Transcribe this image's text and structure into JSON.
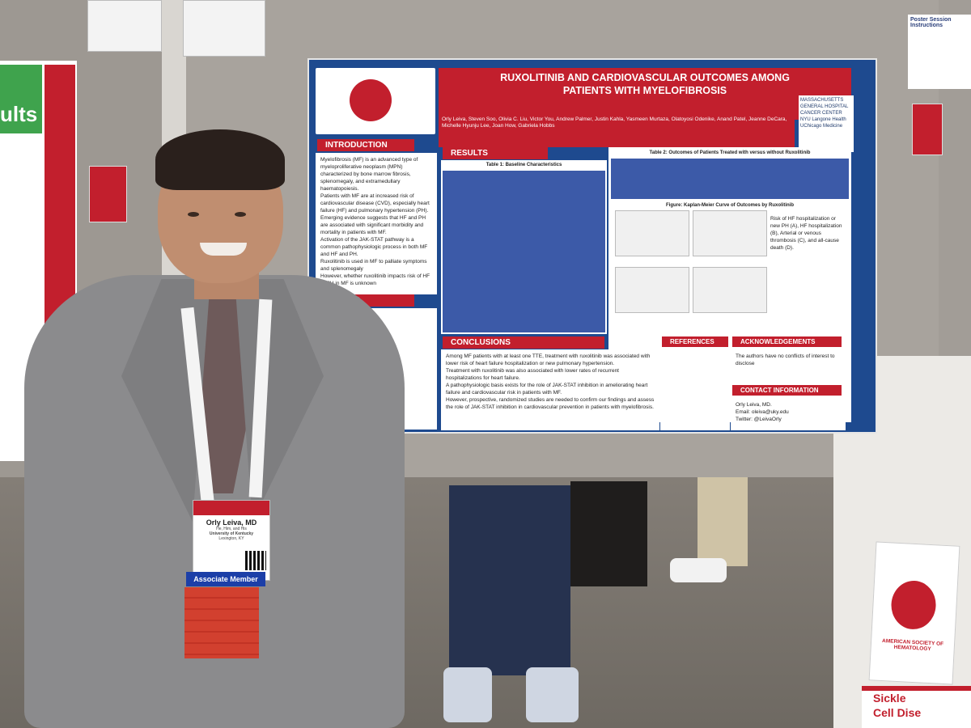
{
  "poster": {
    "title_line1": "RUXOLITINIB AND CARDIOVASCULAR OUTCOMES AMONG",
    "title_line2": "PATIENTS WITH MYELOFIBROSIS",
    "authors": "Orly Leiva, Steven Soo, Olivia C. Liu, Victor You, Andrew Palmer, Justin Kahla, Yasmeen Murtaza, Olatoyosi Odenike, Anand Patel, Jeanne DeCara, Michelle Hyunju Lee, Joan How, Gabriela Hobbs",
    "sections": {
      "introduction": "INTRODUCTION",
      "method": "METHOD",
      "results": "RESULTS",
      "conclusions": "CONCLUSIONS",
      "references": "REFERENCES",
      "acknowledgements": "ACKNOWLEDGEMENTS",
      "contact": "CONTACT INFORMATION"
    },
    "intro_bullets": [
      "Myelofibrosis (MF) is an advanced type of myeloproliferative neoplasm (MPN) characterized by bone marrow fibrosis, splenomegaly, and extramedullary haematopoiesis.",
      "Patients with MF are at increased risk of cardiovascular disease (CVD), especially heart failure (HF) and pulmonary hypertension (PH).",
      "Emerging evidence suggests that HF and PH are associated with significant morbidity and mortality in patients with MF.",
      "Activation of the JAK-STAT pathway is a common pathophysiologic process in both MF and HF and PH.",
      "Ruxolitinib is used in MF to palliate symptoms and splenomegaly",
      "However, whether ruxolitinib impacts risk of HF or PH in MF is unknown"
    ],
    "table1_title": "Table 1: Baseline Characteristics",
    "table2_title": "Table 2: Outcomes of Patients Treated with versus without Ruxolitinib",
    "km_title": "Figure: Kaplan-Meier Curve of Outcomes by Ruxolitinib",
    "km_caption": "Risk of HF hospitalization or new PH (A), HF hospitalization (B), Arterial or venous thrombosis (C), and all-cause death (D).",
    "conclusion_bullets": [
      "Among MF patients with at least one TTE, treatment with ruxolitinib was associated with lower risk of heart failure hospitalization or new pulmonary hypertension.",
      "Treatment with ruxolitinib was also associated with lower rates of recurrent hospitalizations for heart failure.",
      "A pathophysiologic basis exists for the role of JAK-STAT inhibition in ameliorating heart failure and cardiovascular risk in patients with MF.",
      "However, prospective, randomized studies are needed to confirm our findings and assess the role of JAK-STAT inhibition in cardiovascular prevention in patients with myelofibrosis."
    ],
    "acknowledgements_text": "The authors have no conflicts of interest to disclose",
    "contact_lines": [
      "Orly Leiva, MD.",
      "Email: oleiva@uky.edu",
      "Twitter: @LeivaOrly"
    ],
    "logos": [
      "MASSACHUSETTS GENERAL HOSPITAL CANCER CENTER",
      "NYU Langone Health",
      "UChicago Medicine"
    ]
  },
  "left_poster": {
    "heading": "ults"
  },
  "right_card": {
    "title": "Poster Session Instructions"
  },
  "badge": {
    "name": "Orly Leiva, MD",
    "subtitle": "He, Him, and His",
    "affiliation": "University of Kentucky",
    "location": "Lexington, KY",
    "member": "Associate Member",
    "ribbons": [
      "",
      "",
      "",
      "",
      "",
      ""
    ]
  },
  "stand_sign": {
    "text": "AMERICAN SOCIETY OF HEMATOLOGY"
  },
  "bottom_sign": {
    "line1": "Sickle",
    "line2": "Cell Dise"
  },
  "colors": {
    "ash_red": "#c21f2d",
    "poster_blue": "#1e4a8f",
    "member_blue": "#1c3fa8"
  }
}
